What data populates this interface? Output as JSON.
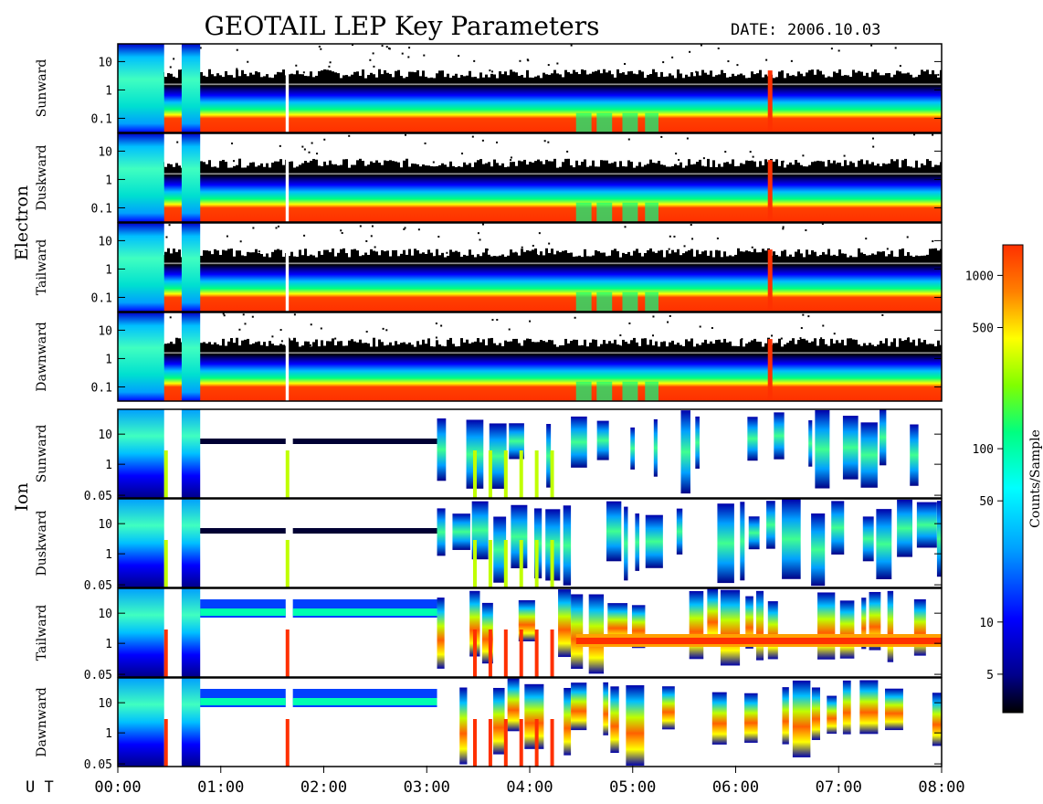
{
  "figure": {
    "title": "GEOTAIL LEP Key Parameters",
    "date_label": "DATE:",
    "date_value": "2006.10.03",
    "x_axis_label": "U T"
  },
  "chart_data": {
    "type": "heatmap",
    "title": "GEOTAIL LEP Key Parameters",
    "date": "2006.10.03",
    "x_label": "U T",
    "x_ticks": [
      "00:00",
      "01:00",
      "02:00",
      "03:00",
      "04:00",
      "05:00",
      "06:00",
      "07:00",
      "08:00"
    ],
    "x_range_hours": [
      0,
      8
    ],
    "groups": [
      {
        "name": "Electron",
        "y_ticks": [
          "10",
          "1",
          "0.1"
        ],
        "y_scale": "log",
        "panels": [
          "Sunward",
          "Duskward",
          "Tailward",
          "Dawnward"
        ]
      },
      {
        "name": "Ion",
        "y_ticks": [
          "10",
          "1",
          "0.05"
        ],
        "y_scale": "log",
        "panels": [
          "Sunward",
          "Duskward",
          "Tailward",
          "Dawnward"
        ]
      }
    ],
    "colorbar": {
      "label": "Counts/Sample",
      "scale": "log",
      "ticks": [
        "1000",
        "500",
        "100",
        "50",
        "10",
        "5"
      ],
      "tick_values": [
        1000,
        500,
        100,
        50,
        10,
        5
      ],
      "range": [
        3,
        1500
      ],
      "colormap": [
        "#000000",
        "#00008b",
        "#0000ff",
        "#00a0ff",
        "#00ffff",
        "#00ff80",
        "#80ff00",
        "#ffff00",
        "#ff8000",
        "#ff3000"
      ]
    },
    "electron_features": {
      "hot_plasma_intervals_hours": [
        [
          0.0,
          0.45
        ],
        [
          0.62,
          0.8
        ]
      ],
      "data_gaps_hours": [
        [
          1.63,
          1.66
        ]
      ],
      "spike_hours": [
        6.33
      ],
      "low_energy_red_band_dropouts_hours": [
        [
          4.45,
          4.6
        ],
        [
          4.65,
          4.8
        ],
        [
          4.9,
          5.05
        ],
        [
          5.12,
          5.25
        ]
      ]
    },
    "ion_features": {
      "dense_intervals_hours": [
        [
          0.0,
          0.45
        ],
        [
          0.62,
          0.8
        ]
      ],
      "cold_beam_intervals_hours": [
        [
          0.8,
          1.63
        ],
        [
          1.7,
          3.1
        ]
      ],
      "cold_beam_intervals_hours_tailward": [
        [
          4.45,
          8.0
        ]
      ],
      "bursty_intervals_hours": [
        [
          3.1,
          4.4
        ],
        [
          4.4,
          8.0
        ]
      ]
    }
  }
}
